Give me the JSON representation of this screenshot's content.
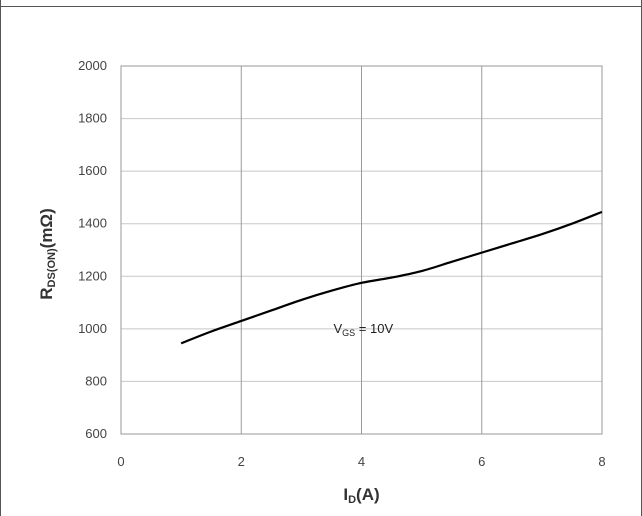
{
  "chart_data": {
    "type": "line",
    "title": "",
    "xlabel": {
      "main": "I",
      "sub": "D",
      "unit": "(A)"
    },
    "ylabel": {
      "main": "R",
      "sub": "DS(ON)",
      "unit": "(mΩ)"
    },
    "xlim": [
      0,
      8
    ],
    "ylim": [
      600,
      2000
    ],
    "x_ticks": [
      0,
      2,
      4,
      6,
      8
    ],
    "y_ticks": [
      600,
      800,
      1000,
      1200,
      1400,
      1600,
      1800,
      2000
    ],
    "grid": {
      "vertical": true,
      "horizontal": true
    },
    "series": [
      {
        "color": "#000000",
        "points": [
          [
            1.0,
            945
          ],
          [
            1.5,
            990
          ],
          [
            2.0,
            1030
          ],
          [
            2.5,
            1070
          ],
          [
            3.0,
            1110
          ],
          [
            3.5,
            1145
          ],
          [
            4.0,
            1175
          ],
          [
            4.5,
            1195
          ],
          [
            5.0,
            1220
          ],
          [
            5.5,
            1255
          ],
          [
            6.0,
            1290
          ],
          [
            6.5,
            1325
          ],
          [
            7.0,
            1360
          ],
          [
            7.5,
            1400
          ],
          [
            8.0,
            1445
          ]
        ]
      }
    ],
    "annotation": {
      "main": "V",
      "sub": "GS",
      "rest": " = 10V",
      "x": 4.0,
      "y": 1000
    }
  }
}
